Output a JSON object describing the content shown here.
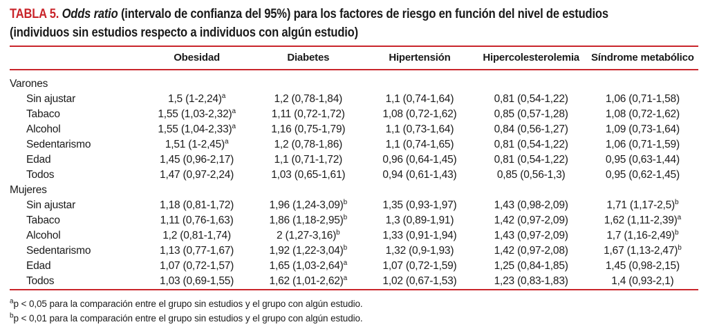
{
  "colors": {
    "accent_red": "#c9242a",
    "text": "#1a1a1a"
  },
  "title": {
    "label": "TABLA 5.",
    "italic": "Odds ratio",
    "rest": "(intervalo de confianza del 95%) para los factores de riesgo en función del nivel de estudios",
    "line2": "(individuos sin estudios respecto a individuos con algún estudio)"
  },
  "table": {
    "columns": [
      "Obesidad",
      "Diabetes",
      "Hipertensión",
      "Hipercolesterolemia",
      "Síndrome metabólico"
    ],
    "sections": [
      {
        "label": "Varones",
        "rows": [
          {
            "label": "Sin ajustar",
            "cells": [
              {
                "v": "1,5 (1-2,24)",
                "s": "a"
              },
              {
                "v": "1,2 (0,78-1,84)"
              },
              {
                "v": "1,1 (0,74-1,64)"
              },
              {
                "v": "0,81 (0,54-1,22)"
              },
              {
                "v": "1,06 (0,71-1,58)"
              }
            ]
          },
          {
            "label": "Tabaco",
            "cells": [
              {
                "v": "1,55 (1,03-2,32)",
                "s": "a"
              },
              {
                "v": "1,11 (0,72-1,72)"
              },
              {
                "v": "1,08 (0,72-1,62)"
              },
              {
                "v": "0,85 (0,57-1,28)"
              },
              {
                "v": "1,08 (0,72-1,62)"
              }
            ]
          },
          {
            "label": "Alcohol",
            "cells": [
              {
                "v": "1,55 (1,04-2,33)",
                "s": "a"
              },
              {
                "v": "1,16 (0,75-1,79)"
              },
              {
                "v": "1,1 (0,73-1,64)"
              },
              {
                "v": "0,84 (0,56-1,27)"
              },
              {
                "v": "1,09 (0,73-1,64)"
              }
            ]
          },
          {
            "label": "Sedentarismo",
            "cells": [
              {
                "v": "1,51 (1-2,45)",
                "s": "a"
              },
              {
                "v": "1,2 (0,78-1,86)"
              },
              {
                "v": "1,1 (0,74-1,65)"
              },
              {
                "v": "0,81 (0,54-1,22)"
              },
              {
                "v": "1,06 (0,71-1,59)"
              }
            ]
          },
          {
            "label": "Edad",
            "cells": [
              {
                "v": "1,45 (0,96-2,17)"
              },
              {
                "v": "1,1 (0,71-1,72)"
              },
              {
                "v": "0,96 (0,64-1,45)"
              },
              {
                "v": "0,81 (0,54-1,22)"
              },
              {
                "v": "0,95 (0,63-1,44)"
              }
            ]
          },
          {
            "label": "Todos",
            "cells": [
              {
                "v": "1,47 (0,97-2,24)"
              },
              {
                "v": "1,03 (0,65-1,61)"
              },
              {
                "v": "0,94 (0,61-1,43)"
              },
              {
                "v": "0,85 (0,56-1,3)"
              },
              {
                "v": "0,95 (0,62-1,45)"
              }
            ]
          }
        ]
      },
      {
        "label": "Mujeres",
        "rows": [
          {
            "label": "Sin ajustar",
            "cells": [
              {
                "v": "1,18 (0,81-1,72)"
              },
              {
                "v": "1,96 (1,24-3,09)",
                "s": "b"
              },
              {
                "v": "1,35 (0,93-1,97)"
              },
              {
                "v": "1,43 (0,98-2,09)"
              },
              {
                "v": "1,71 (1,17-2,5)",
                "s": "b"
              }
            ]
          },
          {
            "label": "Tabaco",
            "cells": [
              {
                "v": "1,11 (0,76-1,63)"
              },
              {
                "v": "1,86 (1,18-2,95)",
                "s": "b"
              },
              {
                "v": "1,3 (0,89-1,91)"
              },
              {
                "v": "1,42 (0,97-2,09)"
              },
              {
                "v": "1,62 (1,11-2,39)",
                "s": "a"
              }
            ]
          },
          {
            "label": "Alcohol",
            "cells": [
              {
                "v": "1,2 (0,81-1,74)"
              },
              {
                "v": "2 (1,27-3,16)",
                "s": "b"
              },
              {
                "v": "1,33 (0,91-1,94)"
              },
              {
                "v": "1,43 (0,97-2,09)"
              },
              {
                "v": "1,7 (1,16-2,49)",
                "s": "b"
              }
            ]
          },
          {
            "label": "Sedentarismo",
            "cells": [
              {
                "v": "1,13 (0,77-1,67)"
              },
              {
                "v": "1,92 (1,22-3,04)",
                "s": "b"
              },
              {
                "v": "1,32 (0,9-1,93)"
              },
              {
                "v": "1,42 (0,97-2,08)"
              },
              {
                "v": "1,67 (1,13-2,47)",
                "s": "b"
              }
            ]
          },
          {
            "label": "Edad",
            "cells": [
              {
                "v": "1,07 (0,72-1,57)"
              },
              {
                "v": "1,65 (1,03-2,64)",
                "s": "a"
              },
              {
                "v": "1,07 (0,72-1,59)"
              },
              {
                "v": "1,25 (0,84-1,85)"
              },
              {
                "v": "1,45 (0,98-2,15)"
              }
            ]
          },
          {
            "label": "Todos",
            "cells": [
              {
                "v": "1,03 (0,69-1,55)"
              },
              {
                "v": "1,62 (1,01-2,62)",
                "s": "a"
              },
              {
                "v": "1,02 (0,67-1,53)"
              },
              {
                "v": "1,23 (0,83-1,83)"
              },
              {
                "v": "1,4 (0,93-2,1)"
              }
            ]
          }
        ]
      }
    ]
  },
  "footnotes": [
    {
      "sup": "a",
      "text": "p < 0,05 para la comparación entre el grupo sin estudios y el grupo con algún estudio."
    },
    {
      "sup": "b",
      "text": "p < 0,01 para la comparación entre el grupo sin estudios y el grupo con algún estudio."
    }
  ]
}
